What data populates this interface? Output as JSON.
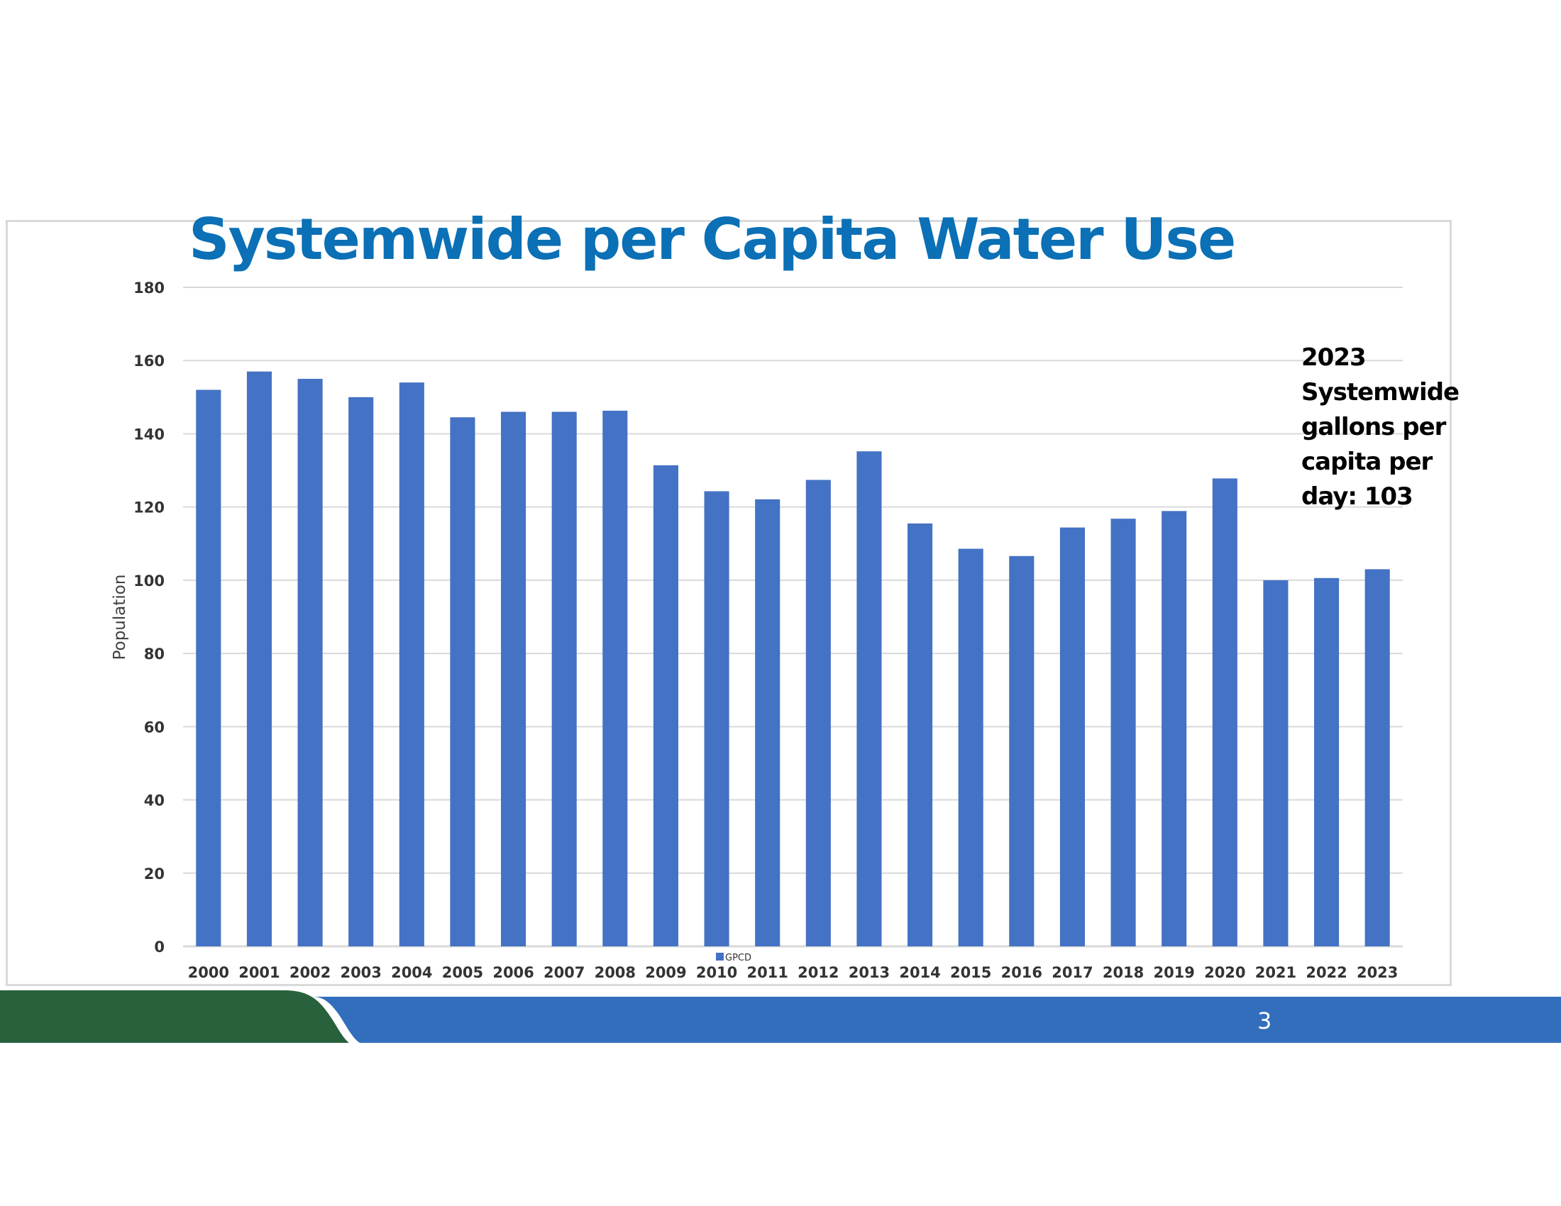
{
  "slide": {
    "title": "Systemwide per Capita Water Use",
    "page_number": "3",
    "annotation": "2023 Systemwide gallons per capita per day: 103",
    "colors": {
      "title": "#0b70b5",
      "bar": "#4472c4",
      "footer_green": "#28613c",
      "footer_blue": "#336ebc",
      "gridline": "#d9d9d9"
    }
  },
  "chart_data": {
    "type": "bar",
    "title": "Systemwide per Capita Water Use",
    "xlabel": "",
    "ylabel": "Population",
    "ylim": [
      0,
      180
    ],
    "yticks": [
      0,
      20,
      40,
      60,
      80,
      100,
      120,
      140,
      160,
      180
    ],
    "grid": true,
    "legend": {
      "position": "bottom-center",
      "entries": [
        "GPCD"
      ]
    },
    "categories": [
      "2000",
      "2001",
      "2002",
      "2003",
      "2004",
      "2005",
      "2006",
      "2007",
      "2008",
      "2009",
      "2010",
      "2011",
      "2012",
      "2013",
      "2014",
      "2015",
      "2016",
      "2017",
      "2018",
      "2019",
      "2020",
      "2021",
      "2022",
      "2023"
    ],
    "series": [
      {
        "name": "GPCD",
        "values": [
          152,
          157,
          155,
          150,
          154,
          144.5,
          146,
          146,
          146.3,
          131.4,
          124.3,
          122.1,
          127.4,
          135.2,
          115.5,
          108.6,
          106.6,
          114.4,
          116.8,
          118.9,
          127.8,
          100,
          100.6,
          103
        ]
      }
    ],
    "annotations": [
      "2023 Systemwide gallons per capita per day: 103"
    ]
  }
}
